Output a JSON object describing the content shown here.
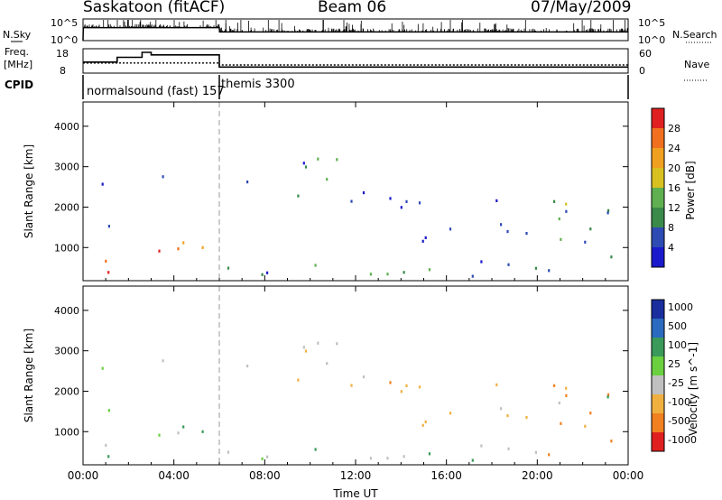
{
  "header": {
    "station": "Saskatoon (fitACF)",
    "beam": "Beam 06",
    "date": "07/May/2009"
  },
  "panels": {
    "nsky": {
      "left_label": "N.Sky",
      "right_label": "N.Search",
      "left_ticks": [
        "10^5",
        "10^0"
      ],
      "right_ticks": [
        "10^5",
        "10^0"
      ]
    },
    "freq": {
      "left_label_1": "Freq.",
      "left_label_2": "[MHz]",
      "right_label": "Nave",
      "left_ticks": [
        "18",
        "8"
      ],
      "right_ticks": [
        "60",
        "0"
      ]
    },
    "cpid": {
      "label": "CPID",
      "modes": [
        {
          "name": "normalsound (fast) 157",
          "start_h": 0,
          "end_h": 6
        },
        {
          "name": "themis 3300",
          "start_h": 6,
          "end_h": 24
        }
      ]
    }
  },
  "colors": {
    "power": [
      "#1a1acc",
      "#2e4bb3",
      "#3a8a4a",
      "#5fb050",
      "#d8c020",
      "#f0a020",
      "#f07020",
      "#e02020"
    ],
    "velocity": [
      "#1a2e9e",
      "#2a6abf",
      "#3a9a5a",
      "#6ad040",
      "#c0c0c0",
      "#f0b040",
      "#f08020",
      "#e02020"
    ]
  },
  "chart_data": [
    {
      "type": "line",
      "title": "N.Sky / N.Search",
      "x_range_hours": [
        0,
        24
      ],
      "y_scale": "log",
      "ylim": [
        1,
        100000
      ],
      "series": [
        {
          "name": "N.Sky",
          "x": [
            0,
            0.01,
            6,
            6.01,
            24
          ],
          "y": [
            1,
            1000,
            1000,
            100,
            100
          ]
        }
      ]
    },
    {
      "type": "line",
      "title": "Freq. [MHz]",
      "x_range_hours": [
        0,
        24
      ],
      "ylim": [
        8,
        18
      ],
      "series": [
        {
          "name": "Freq",
          "x": [
            0,
            1.5,
            1.5,
            2.6,
            2.6,
            3.0,
            3.0,
            6.0,
            6.0,
            24
          ],
          "y": [
            12.5,
            12.5,
            14.5,
            14.5,
            16.5,
            16.5,
            15.5,
            15.5,
            10.5,
            10.5
          ]
        },
        {
          "name": "Nave",
          "x": [
            0,
            6,
            6,
            24
          ],
          "y": [
            25,
            25,
            20,
            20
          ]
        }
      ]
    },
    {
      "type": "heatmap",
      "title": "Power",
      "ylabel": "Slant Range [km]",
      "xlabel": "Time UT",
      "colorbar_label": "Power [dB]",
      "colorbar_ticks": [
        4,
        8,
        12,
        16,
        20,
        24,
        28
      ],
      "x_ticks": [
        "00:00",
        "04:00",
        "08:00",
        "12:00",
        "16:00",
        "20:00",
        "00:00"
      ],
      "y_ticks": [
        1000,
        2000,
        3000,
        4000
      ],
      "ylim": [
        180,
        4600
      ],
      "xlim_hours": [
        0,
        24
      ]
    },
    {
      "type": "heatmap",
      "title": "Velocity",
      "ylabel": "Slant Range [km]",
      "xlabel": "Time UT",
      "colorbar_label": "Velocity [m s^-1]",
      "colorbar_ticks": [
        "1000",
        "500",
        "100",
        "25",
        "-25",
        "-100",
        "-500",
        "-1000"
      ],
      "x_ticks": [
        "00:00",
        "04:00",
        "08:00",
        "12:00",
        "16:00",
        "20:00",
        "00:00"
      ],
      "y_ticks": [
        1000,
        2000,
        3000,
        4000
      ],
      "ylim": [
        180,
        4600
      ],
      "xlim_hours": [
        0,
        24
      ]
    }
  ]
}
